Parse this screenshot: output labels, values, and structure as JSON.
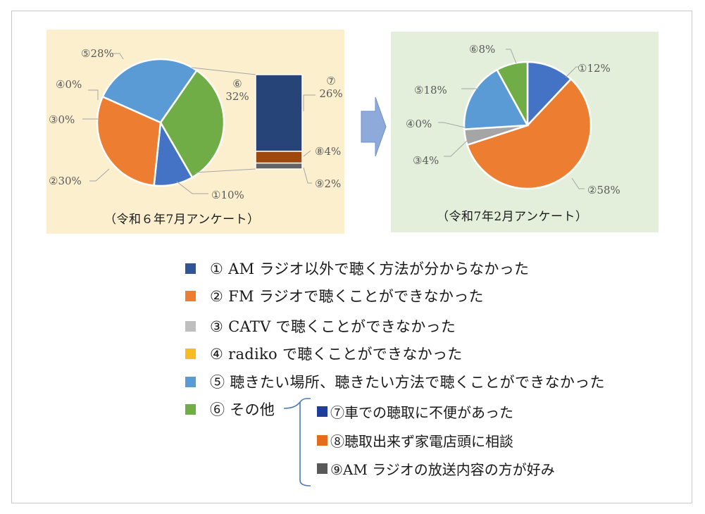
{
  "chart_data": [
    {
      "type": "pie",
      "title": "（令和６年7月アンケート）",
      "slices": [
        {
          "label": "①10%",
          "value": 10,
          "color": "#4472c4"
        },
        {
          "label": "②30%",
          "value": 30,
          "color": "#ed7d31"
        },
        {
          "label": "③0%",
          "value": 0,
          "color": "#a5a5a5"
        },
        {
          "label": "④0%",
          "value": 0,
          "color": "#ffc000"
        },
        {
          "label": "⑤28%",
          "value": 28,
          "color": "#5b9bd5"
        },
        {
          "label": "⑥\n32%",
          "value": 32,
          "color": "#70ad47"
        }
      ],
      "breakdown": {
        "type": "stacked-bar",
        "of_slice": "⑥",
        "segments": [
          {
            "label": "⑦\n26%",
            "value": 26,
            "color": "#264478"
          },
          {
            "label": "⑧4%",
            "value": 4,
            "color": "#9e480e"
          },
          {
            "label": "⑨2%",
            "value": 2,
            "color": "#636363"
          }
        ]
      }
    },
    {
      "type": "pie",
      "title": "（令和7年2月アンケート）",
      "slices": [
        {
          "label": "①12%",
          "value": 12,
          "color": "#4472c4"
        },
        {
          "label": "②58%",
          "value": 58,
          "color": "#ed7d31"
        },
        {
          "label": "③4%",
          "value": 4,
          "color": "#a5a5a5"
        },
        {
          "label": "④0%",
          "value": 0,
          "color": "#ffc000"
        },
        {
          "label": "⑤18%",
          "value": 18,
          "color": "#5b9bd5"
        },
        {
          "label": "⑥8%",
          "value": 8,
          "color": "#70ad47"
        }
      ]
    }
  ],
  "legend": [
    {
      "text": "①  AM ラジオ以外で聴く方法が分からなかった",
      "color": "#2f5597"
    },
    {
      "text": "②  FM ラジオで聴くことができなかった",
      "color": "#ed7d31"
    },
    {
      "text": "③  CATV で聴くことができなかった",
      "color": "#bfbfbf"
    },
    {
      "text": "④  radiko で聴くことができなかった",
      "color": "#f5bd1f"
    },
    {
      "text": "⑤  聴きたい場所、聴きたい方法で聴くことができなかった",
      "color": "#5b9bd5"
    },
    {
      "text": "⑥  その他",
      "color": "#70ad47"
    }
  ],
  "sublegend": [
    {
      "text": "⑦車での聴取に不便があった",
      "color": "#1f3e99"
    },
    {
      "text": "⑧聴取出来ず家電店頭に相談",
      "color": "#e46c1d"
    },
    {
      "text": "⑨AM ラジオの放送内容の方が好み",
      "color": "#595959"
    }
  ],
  "colors": {
    "leader_line": "#a6a6a6",
    "label_text": "#595959",
    "brace": "#4a78b8",
    "arrow_fill": "#8eaadb",
    "arrow_stroke": "#6f8fcf"
  }
}
